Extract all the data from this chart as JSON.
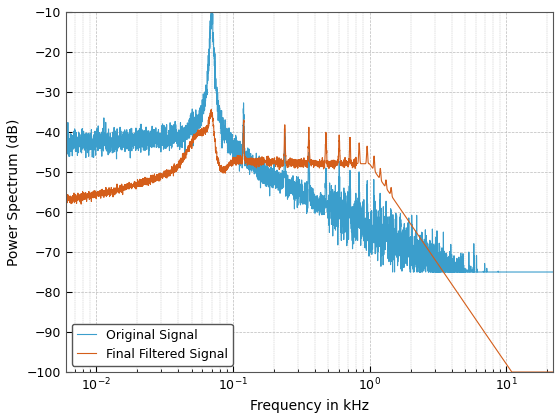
{
  "xlabel": "Frequency in kHz",
  "ylabel": "Power Spectrum (dB)",
  "xlim": [
    0.006,
    22
  ],
  "ylim": [
    -100,
    -10
  ],
  "yticks": [
    -100,
    -90,
    -80,
    -70,
    -60,
    -50,
    -40,
    -30,
    -20,
    -10
  ],
  "legend": [
    "Original Signal",
    "Final Filtered Signal"
  ],
  "blue_color": "#3B9ECC",
  "orange_color": "#D45E1A",
  "bg_color": "#FFFFFF",
  "grid_color": "#BBBBBB",
  "axis_fontsize": 10,
  "legend_fontsize": 9,
  "line_width": 0.8
}
